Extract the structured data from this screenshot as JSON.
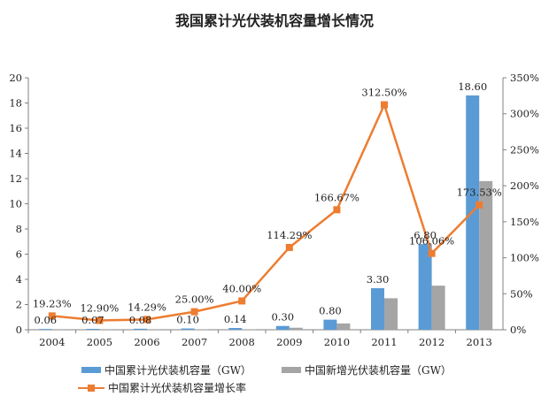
{
  "title": "我国累计光伏装机容量增长情况",
  "colors": {
    "cumulative": "#5B9BD5",
    "new": "#A5A5A5",
    "growth": "#ED7D31"
  },
  "chart_data": {
    "type": "bar",
    "title": "我国累计光伏装机容量增长情况",
    "categories": [
      "2004",
      "2005",
      "2006",
      "2007",
      "2008",
      "2009",
      "2010",
      "2011",
      "2012",
      "2013"
    ],
    "series": [
      {
        "name": "中国累计光伏装机容量（GW）",
        "type": "bar",
        "axis": "left",
        "values": [
          0.06,
          0.07,
          0.08,
          0.1,
          0.14,
          0.3,
          0.8,
          3.3,
          6.8,
          18.6
        ],
        "labels": [
          "0.06",
          "0.07",
          "0.08",
          "0.10",
          "0.14",
          "0.30",
          "0.80",
          "3.30",
          "6.80",
          "18.60"
        ]
      },
      {
        "name": "中国新增光伏装机容量（GW）",
        "type": "bar",
        "axis": "left",
        "values": [
          0.01,
          0.01,
          0.01,
          0.02,
          0.04,
          0.16,
          0.5,
          2.5,
          3.5,
          11.8
        ]
      },
      {
        "name": "中国累计光伏装机容量增长率",
        "type": "line",
        "axis": "right",
        "values": [
          19.23,
          12.9,
          14.29,
          25.0,
          40.0,
          114.29,
          166.67,
          312.5,
          106.06,
          173.53
        ],
        "labels": [
          "19.23%",
          "12.90%",
          "14.29%",
          "25.00%",
          "40.00%",
          "114.29%",
          "166.67%",
          "312.50%",
          "106.06%",
          "173.53%"
        ]
      }
    ],
    "ylim_left": [
      0,
      20
    ],
    "yticks_left": [
      "0",
      "2",
      "4",
      "6",
      "8",
      "10",
      "12",
      "14",
      "16",
      "18",
      "20"
    ],
    "ylim_right": [
      0,
      350
    ],
    "yticks_right": [
      "0%",
      "50%",
      "100%",
      "150%",
      "200%",
      "250%",
      "300%",
      "350%"
    ],
    "grid": false,
    "legend_position": "bottom"
  }
}
